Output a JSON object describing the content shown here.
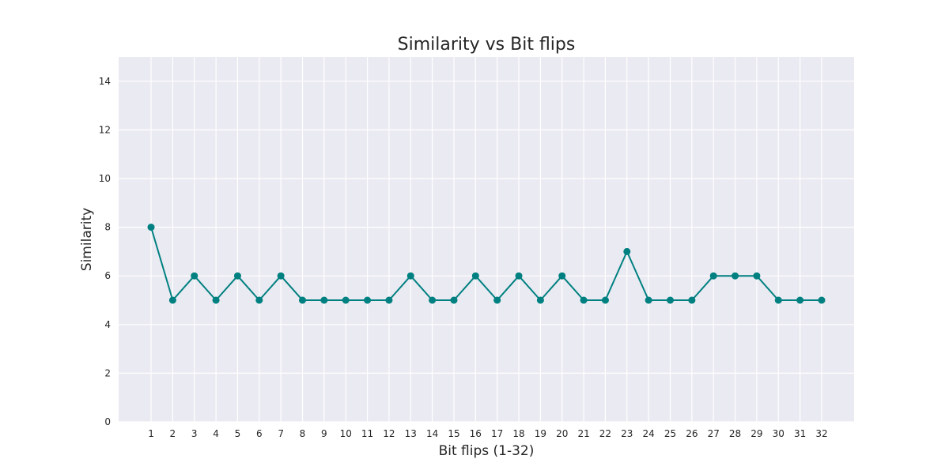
{
  "chart_data": {
    "type": "line",
    "title": "Similarity vs Bit flips",
    "xlabel": "Bit flips (1-32)",
    "ylabel": "Similarity",
    "x": [
      1,
      2,
      3,
      4,
      5,
      6,
      7,
      8,
      9,
      10,
      11,
      12,
      13,
      14,
      15,
      16,
      17,
      18,
      19,
      20,
      21,
      22,
      23,
      24,
      25,
      26,
      27,
      28,
      29,
      30,
      31,
      32
    ],
    "series": [
      {
        "values": [
          8,
          5,
          6,
          5,
          6,
          5,
          6,
          5,
          5,
          5,
          5,
          5,
          6,
          5,
          5,
          6,
          5,
          6,
          5,
          6,
          5,
          5,
          7,
          5,
          5,
          5,
          6,
          6,
          6,
          5,
          5,
          5
        ],
        "color": "#008080",
        "marker": "circle"
      }
    ],
    "xlim": [
      -0.5,
      33.5
    ],
    "ylim": [
      0,
      15
    ],
    "xticks": [
      1,
      2,
      3,
      4,
      5,
      6,
      7,
      8,
      9,
      10,
      11,
      12,
      13,
      14,
      15,
      16,
      17,
      18,
      19,
      20,
      21,
      22,
      23,
      24,
      25,
      26,
      27,
      28,
      29,
      30,
      31,
      32
    ],
    "yticks": [
      0,
      2,
      4,
      6,
      8,
      10,
      12,
      14
    ],
    "grid": true,
    "background_color": "#eaeaf2",
    "grid_color": "#ffffff"
  }
}
